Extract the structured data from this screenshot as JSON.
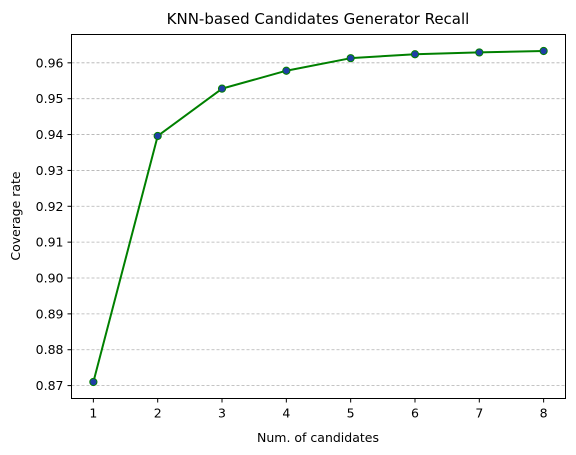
{
  "chart_data": {
    "type": "line",
    "title": "KNN-based Candidates Generator Recall",
    "xlabel": "Num. of candidates",
    "ylabel": "Coverage rate",
    "x": [
      1,
      2,
      3,
      4,
      5,
      6,
      7,
      8
    ],
    "series": [
      {
        "values": [
          0.871,
          0.9396,
          0.9528,
          0.9578,
          0.9613,
          0.9624,
          0.9629,
          0.9633
        ],
        "line_color": "#008000",
        "marker_fill": "#1f3ea6",
        "marker_edge": "#008000"
      }
    ],
    "x_ticks": [
      1,
      2,
      3,
      4,
      5,
      6,
      7,
      8
    ],
    "y_ticks": [
      "0.87",
      "0.88",
      "0.89",
      "0.90",
      "0.91",
      "0.92",
      "0.93",
      "0.94",
      "0.95",
      "0.96"
    ],
    "xlim": [
      0.66,
      8.34
    ],
    "ylim": [
      0.8664,
      0.9679
    ],
    "grid": "y-axis dashed"
  }
}
